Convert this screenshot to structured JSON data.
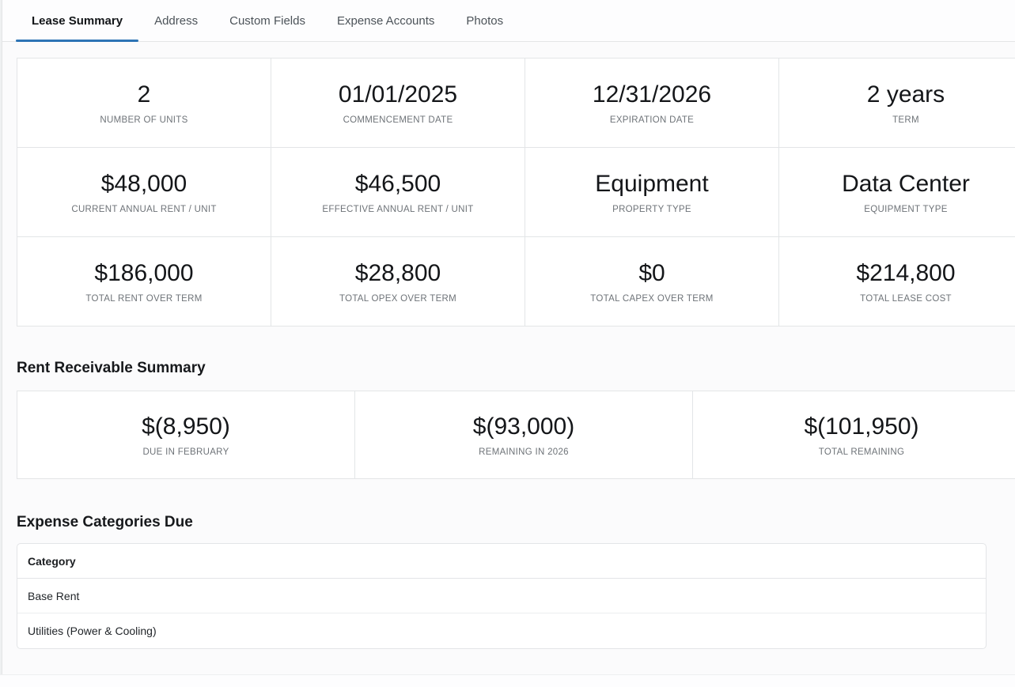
{
  "colors": {
    "accent": "#2d74b5"
  },
  "tabs": [
    {
      "label": "Lease Summary",
      "active": true
    },
    {
      "label": "Address",
      "active": false
    },
    {
      "label": "Custom Fields",
      "active": false
    },
    {
      "label": "Expense Accounts",
      "active": false
    },
    {
      "label": "Photos",
      "active": false
    }
  ],
  "stats": {
    "cards": [
      {
        "value": "2",
        "label": "NUMBER OF UNITS"
      },
      {
        "value": "01/01/2025",
        "label": "COMMENCEMENT DATE"
      },
      {
        "value": "12/31/2026",
        "label": "EXPIRATION DATE"
      },
      {
        "value": "2 years",
        "label": "TERM"
      },
      {
        "value": "$48,000",
        "label": "CURRENT ANNUAL RENT / UNIT"
      },
      {
        "value": "$46,500",
        "label": "EFFECTIVE ANNUAL RENT / UNIT"
      },
      {
        "value": "Equipment",
        "label": "PROPERTY TYPE"
      },
      {
        "value": "Data Center",
        "label": "EQUIPMENT TYPE"
      },
      {
        "value": "$186,000",
        "label": "TOTAL RENT OVER TERM"
      },
      {
        "value": "$28,800",
        "label": "TOTAL OPEX OVER TERM"
      },
      {
        "value": "$0",
        "label": "TOTAL CAPEX OVER TERM"
      },
      {
        "value": "$214,800",
        "label": "TOTAL LEASE COST"
      }
    ]
  },
  "rent_receivable": {
    "title": "Rent Receivable Summary",
    "cards": [
      {
        "value": "$(8,950)",
        "label": "DUE IN FEBRUARY"
      },
      {
        "value": "$(93,000)",
        "label": "REMAINING IN 2026"
      },
      {
        "value": "$(101,950)",
        "label": "TOTAL REMAINING"
      }
    ]
  },
  "expense_categories": {
    "title": "Expense Categories Due",
    "header": "Category",
    "rows": [
      "Base Rent",
      "Utilities (Power & Cooling)"
    ]
  }
}
